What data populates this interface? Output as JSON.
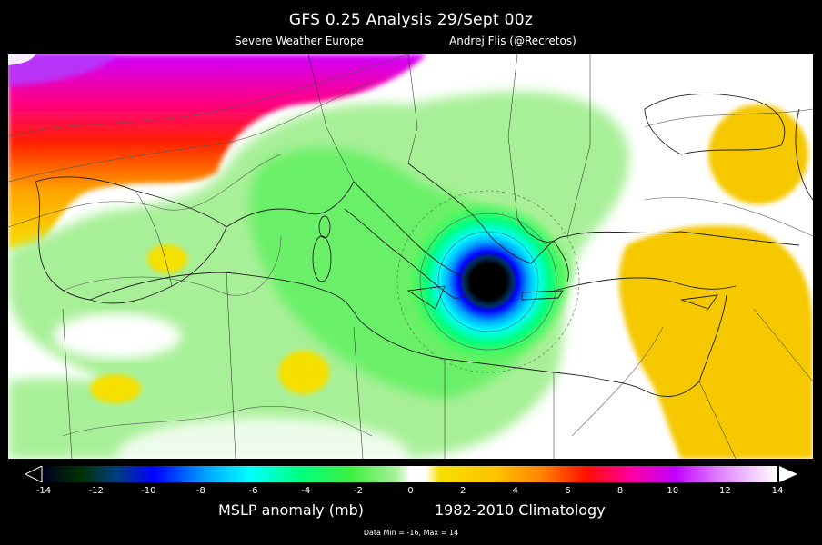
{
  "header": {
    "title": "GFS 0.25 Analysis  29/Sept 00z",
    "source": "Severe Weather Europe",
    "author": "Andrej Flis (@Recretos)"
  },
  "legend": {
    "variable_label": "MSLP anomaly (mb)",
    "climatology_label": "1982-2010 Climatology",
    "ticks": [
      "-14",
      "-12",
      "-10",
      "-8",
      "-6",
      "-4",
      "-2",
      "0",
      "2",
      "4",
      "6",
      "8",
      "10",
      "12",
      "14"
    ],
    "range": [
      -14,
      14
    ],
    "colors": {
      "-14": "#000000",
      "-12": "#006000",
      "-10": "#0000ff",
      "-8": "#00ffff",
      "-6": "#00ff80",
      "-4": "#40ff40",
      "-2": "#a0f090",
      "0": "#ffffff",
      "2": "#f5e000",
      "4": "#ffa500",
      "6": "#ff0000",
      "8": "#ff00ff",
      "10": "#8040ff",
      "12": "#e070ff",
      "14": "#ffffff"
    }
  },
  "footnote": "Data Min = -16, Max = 14",
  "map": {
    "region": "Mediterranean / Central Europe / North Africa",
    "features": [
      "low-pressure-center-ionian-sea",
      "positive-anomaly-eastern-mediterranean",
      "positive-anomaly-northwest"
    ]
  }
}
